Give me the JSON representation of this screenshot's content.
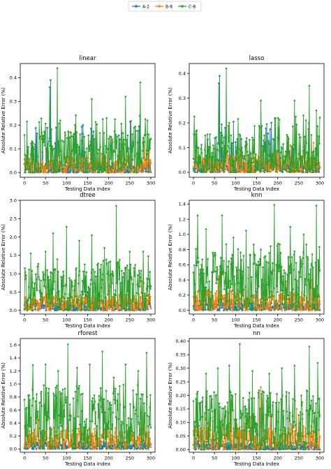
{
  "legend": {
    "placement": "top-center",
    "entries": [
      {
        "label": "A-2",
        "color": "#1f77b4"
      },
      {
        "label": "B-8",
        "color": "#ff7f0e"
      },
      {
        "label": "C-8",
        "color": "#2ca02c"
      }
    ]
  },
  "chart_data": [
    {
      "type": "line",
      "title": "linear",
      "xlabel": "Testing Data Index",
      "ylabel": "Absolute Relative Error (%)",
      "xlim": [
        -10,
        310
      ],
      "ylim": [
        -0.02,
        0.46
      ],
      "xticks": [
        0,
        50,
        100,
        150,
        200,
        250,
        300
      ],
      "yticks": [
        0.0,
        0.1,
        0.2,
        0.3,
        0.4
      ],
      "ytick_labels": [
        "0.0",
        "0.1",
        "0.2",
        "0.3",
        "0.4"
      ],
      "series": [
        {
          "name": "A-2",
          "color": "#1f77b4",
          "peaks": [
            [
              62,
              0.39
            ],
            [
              75,
              0.19
            ],
            [
              130,
              0.08
            ],
            [
              274,
              0.24
            ]
          ],
          "base": 0.02
        },
        {
          "name": "B-8",
          "color": "#ff7f0e",
          "peaks": [
            [
              110,
              0.17
            ],
            [
              160,
              0.15
            ],
            [
              230,
              0.12
            ],
            [
              285,
              0.13
            ]
          ],
          "base": 0.03
        },
        {
          "name": "C-8",
          "color": "#2ca02c",
          "peaks": [
            [
              60,
              0.36
            ],
            [
              78,
              0.44
            ],
            [
              85,
              0.22
            ],
            [
              120,
              0.2
            ],
            [
              160,
              0.31
            ],
            [
              195,
              0.23
            ],
            [
              240,
              0.32
            ],
            [
              275,
              0.38
            ],
            [
              292,
              0.22
            ]
          ],
          "base": 0.08
        }
      ]
    },
    {
      "type": "line",
      "title": "lasso",
      "xlabel": "Testing Data Index",
      "ylabel": "Absolute Relative Error (%)",
      "xlim": [
        -10,
        310
      ],
      "ylim": [
        -0.02,
        0.44
      ],
      "xticks": [
        0,
        50,
        100,
        150,
        200,
        250,
        300
      ],
      "yticks": [
        0.0,
        0.1,
        0.2,
        0.3,
        0.4
      ],
      "ytick_labels": [
        "0.0",
        "0.1",
        "0.2",
        "0.3",
        "0.4"
      ],
      "series": [
        {
          "name": "A-2",
          "color": "#1f77b4",
          "peaks": [
            [
              62,
              0.39
            ],
            [
              75,
              0.18
            ],
            [
              130,
              0.07
            ],
            [
              274,
              0.2
            ]
          ],
          "base": 0.02
        },
        {
          "name": "B-8",
          "color": "#ff7f0e",
          "peaks": [
            [
              110,
              0.15
            ],
            [
              160,
              0.14
            ],
            [
              230,
              0.11
            ],
            [
              285,
              0.12
            ]
          ],
          "base": 0.03
        },
        {
          "name": "C-8",
          "color": "#2ca02c",
          "peaks": [
            [
              60,
              0.36
            ],
            [
              78,
              0.42
            ],
            [
              85,
              0.2
            ],
            [
              160,
              0.29
            ],
            [
              195,
              0.22
            ],
            [
              240,
              0.29
            ],
            [
              275,
              0.35
            ],
            [
              292,
              0.25
            ]
          ],
          "base": 0.07
        }
      ]
    },
    {
      "type": "line",
      "title": "dtree",
      "xlabel": "Testing Data Index",
      "ylabel": "Absolute Relative Error (%)",
      "xlim": [
        -10,
        310
      ],
      "ylim": [
        -0.1,
        3.0
      ],
      "xticks": [
        0,
        50,
        100,
        150,
        200,
        250,
        300
      ],
      "yticks": [
        0.0,
        0.5,
        1.0,
        1.5,
        2.0,
        2.5,
        3.0
      ],
      "ytick_labels": [
        "0.0",
        "0.5",
        "1.0",
        "1.5",
        "2.0",
        "2.5",
        "3.0"
      ],
      "series": [
        {
          "name": "A-2",
          "color": "#1f77b4",
          "peaks": [
            [
              60,
              0.45
            ],
            [
              150,
              0.5
            ],
            [
              240,
              0.4
            ]
          ],
          "base": 0.1
        },
        {
          "name": "B-8",
          "color": "#ff7f0e",
          "peaks": [
            [
              50,
              0.6
            ],
            [
              120,
              0.75
            ],
            [
              200,
              0.7
            ],
            [
              280,
              0.8
            ]
          ],
          "base": 0.2
        },
        {
          "name": "C-8",
          "color": "#2ca02c",
          "peaks": [
            [
              15,
              1.55
            ],
            [
              50,
              1.6
            ],
            [
              68,
              2.1
            ],
            [
              100,
              2.28
            ],
            [
              130,
              1.9
            ],
            [
              160,
              2.05
            ],
            [
              190,
              1.7
            ],
            [
              218,
              2.85
            ],
            [
              250,
              1.6
            ],
            [
              282,
              1.6
            ]
          ],
          "base": 0.6
        }
      ]
    },
    {
      "type": "line",
      "title": "knn",
      "xlabel": "Testing Data Index",
      "ylabel": "Absolute Relative Error (%)",
      "xlim": [
        -10,
        310
      ],
      "ylim": [
        -0.05,
        1.45
      ],
      "xticks": [
        0,
        50,
        100,
        150,
        200,
        250,
        300
      ],
      "yticks": [
        0.0,
        0.2,
        0.4,
        0.6,
        0.8,
        1.0,
        1.2,
        1.4
      ],
      "ytick_labels": [
        "0.0",
        "0.2",
        "0.4",
        "0.6",
        "0.8",
        "1.0",
        "1.2",
        "1.4"
      ],
      "series": [
        {
          "name": "A-2",
          "color": "#1f77b4",
          "peaks": [
            [
              30,
              0.3
            ],
            [
              150,
              0.25
            ],
            [
              250,
              0.3
            ]
          ],
          "base": 0.05
        },
        {
          "name": "B-8",
          "color": "#ff7f0e",
          "peaks": [
            [
              60,
              0.45
            ],
            [
              130,
              0.42
            ],
            [
              220,
              0.38
            ],
            [
              280,
              0.4
            ]
          ],
          "base": 0.12
        },
        {
          "name": "C-8",
          "color": "#2ca02c",
          "peaks": [
            [
              10,
              1.25
            ],
            [
              30,
              1.07
            ],
            [
              68,
              1.25
            ],
            [
              95,
              0.96
            ],
            [
              125,
              1.05
            ],
            [
              160,
              0.8
            ],
            [
              192,
              1.39
            ],
            [
              230,
              1.1
            ],
            [
              262,
              1.0
            ],
            [
              292,
              1.38
            ]
          ],
          "base": 0.4
        }
      ]
    },
    {
      "type": "line",
      "title": "rforest",
      "xlabel": "Testing Data Index",
      "ylabel": "Absolute Relative Error (%)",
      "xlim": [
        -10,
        310
      ],
      "ylim": [
        -0.05,
        1.7
      ],
      "xticks": [
        0,
        50,
        100,
        150,
        200,
        250,
        300
      ],
      "yticks": [
        0.0,
        0.2,
        0.4,
        0.6,
        0.8,
        1.0,
        1.2,
        1.4,
        1.6
      ],
      "ytick_labels": [
        "0.0",
        "0.2",
        "0.4",
        "0.6",
        "0.8",
        "1.0",
        "1.2",
        "1.4",
        "1.6"
      ],
      "series": [
        {
          "name": "A-2",
          "color": "#1f77b4",
          "peaks": [
            [
              40,
              0.25
            ],
            [
              150,
              0.2
            ],
            [
              260,
              0.25
            ]
          ],
          "base": 0.05
        },
        {
          "name": "B-8",
          "color": "#ff7f0e",
          "peaks": [
            [
              30,
              0.45
            ],
            [
              110,
              0.5
            ],
            [
              200,
              0.42
            ],
            [
              285,
              0.48
            ]
          ],
          "base": 0.15
        },
        {
          "name": "C-8",
          "color": "#2ca02c",
          "peaks": [
            [
              20,
              1.29
            ],
            [
              50,
              1.3
            ],
            [
              80,
              1.2
            ],
            [
              103,
              1.61
            ],
            [
              125,
              1.25
            ],
            [
              155,
              1.3
            ],
            [
              185,
              1.5
            ],
            [
              212,
              1.1
            ],
            [
              240,
              1.3
            ],
            [
              270,
              1.2
            ],
            [
              290,
              1.48
            ]
          ],
          "base": 0.45
        }
      ]
    },
    {
      "type": "line",
      "title": "nn",
      "xlabel": "Testing Data Index",
      "ylabel": "Absolute Relative Error (%)",
      "xlim": [
        -10,
        310
      ],
      "ylim": [
        -0.01,
        0.41
      ],
      "xticks": [
        0,
        50,
        100,
        150,
        200,
        250,
        300
      ],
      "yticks": [
        0.0,
        0.05,
        0.1,
        0.15,
        0.2,
        0.25,
        0.3,
        0.35,
        0.4
      ],
      "ytick_labels": [
        "0.00",
        "0.05",
        "0.10",
        "0.15",
        "0.20",
        "0.25",
        "0.30",
        "0.35",
        "0.40"
      ],
      "series": [
        {
          "name": "A-2",
          "color": "#1f77b4",
          "peaks": [
            [
              60,
              0.08
            ],
            [
              170,
              0.07
            ],
            [
              250,
              0.06
            ]
          ],
          "base": 0.01
        },
        {
          "name": "B-8",
          "color": "#ff7f0e",
          "peaks": [
            [
              5,
              0.1
            ],
            [
              90,
              0.18
            ],
            [
              160,
              0.23
            ],
            [
              245,
              0.15
            ]
          ],
          "base": 0.04
        },
        {
          "name": "C-8",
          "color": "#2ca02c",
          "peaks": [
            [
              30,
              0.28
            ],
            [
              58,
              0.3
            ],
            [
              85,
              0.31
            ],
            [
              110,
              0.39
            ],
            [
              140,
              0.29
            ],
            [
              180,
              0.28
            ],
            [
              210,
              0.3
            ],
            [
              240,
              0.31
            ],
            [
              275,
              0.38
            ],
            [
              295,
              0.32
            ]
          ],
          "base": 0.1
        }
      ]
    }
  ]
}
